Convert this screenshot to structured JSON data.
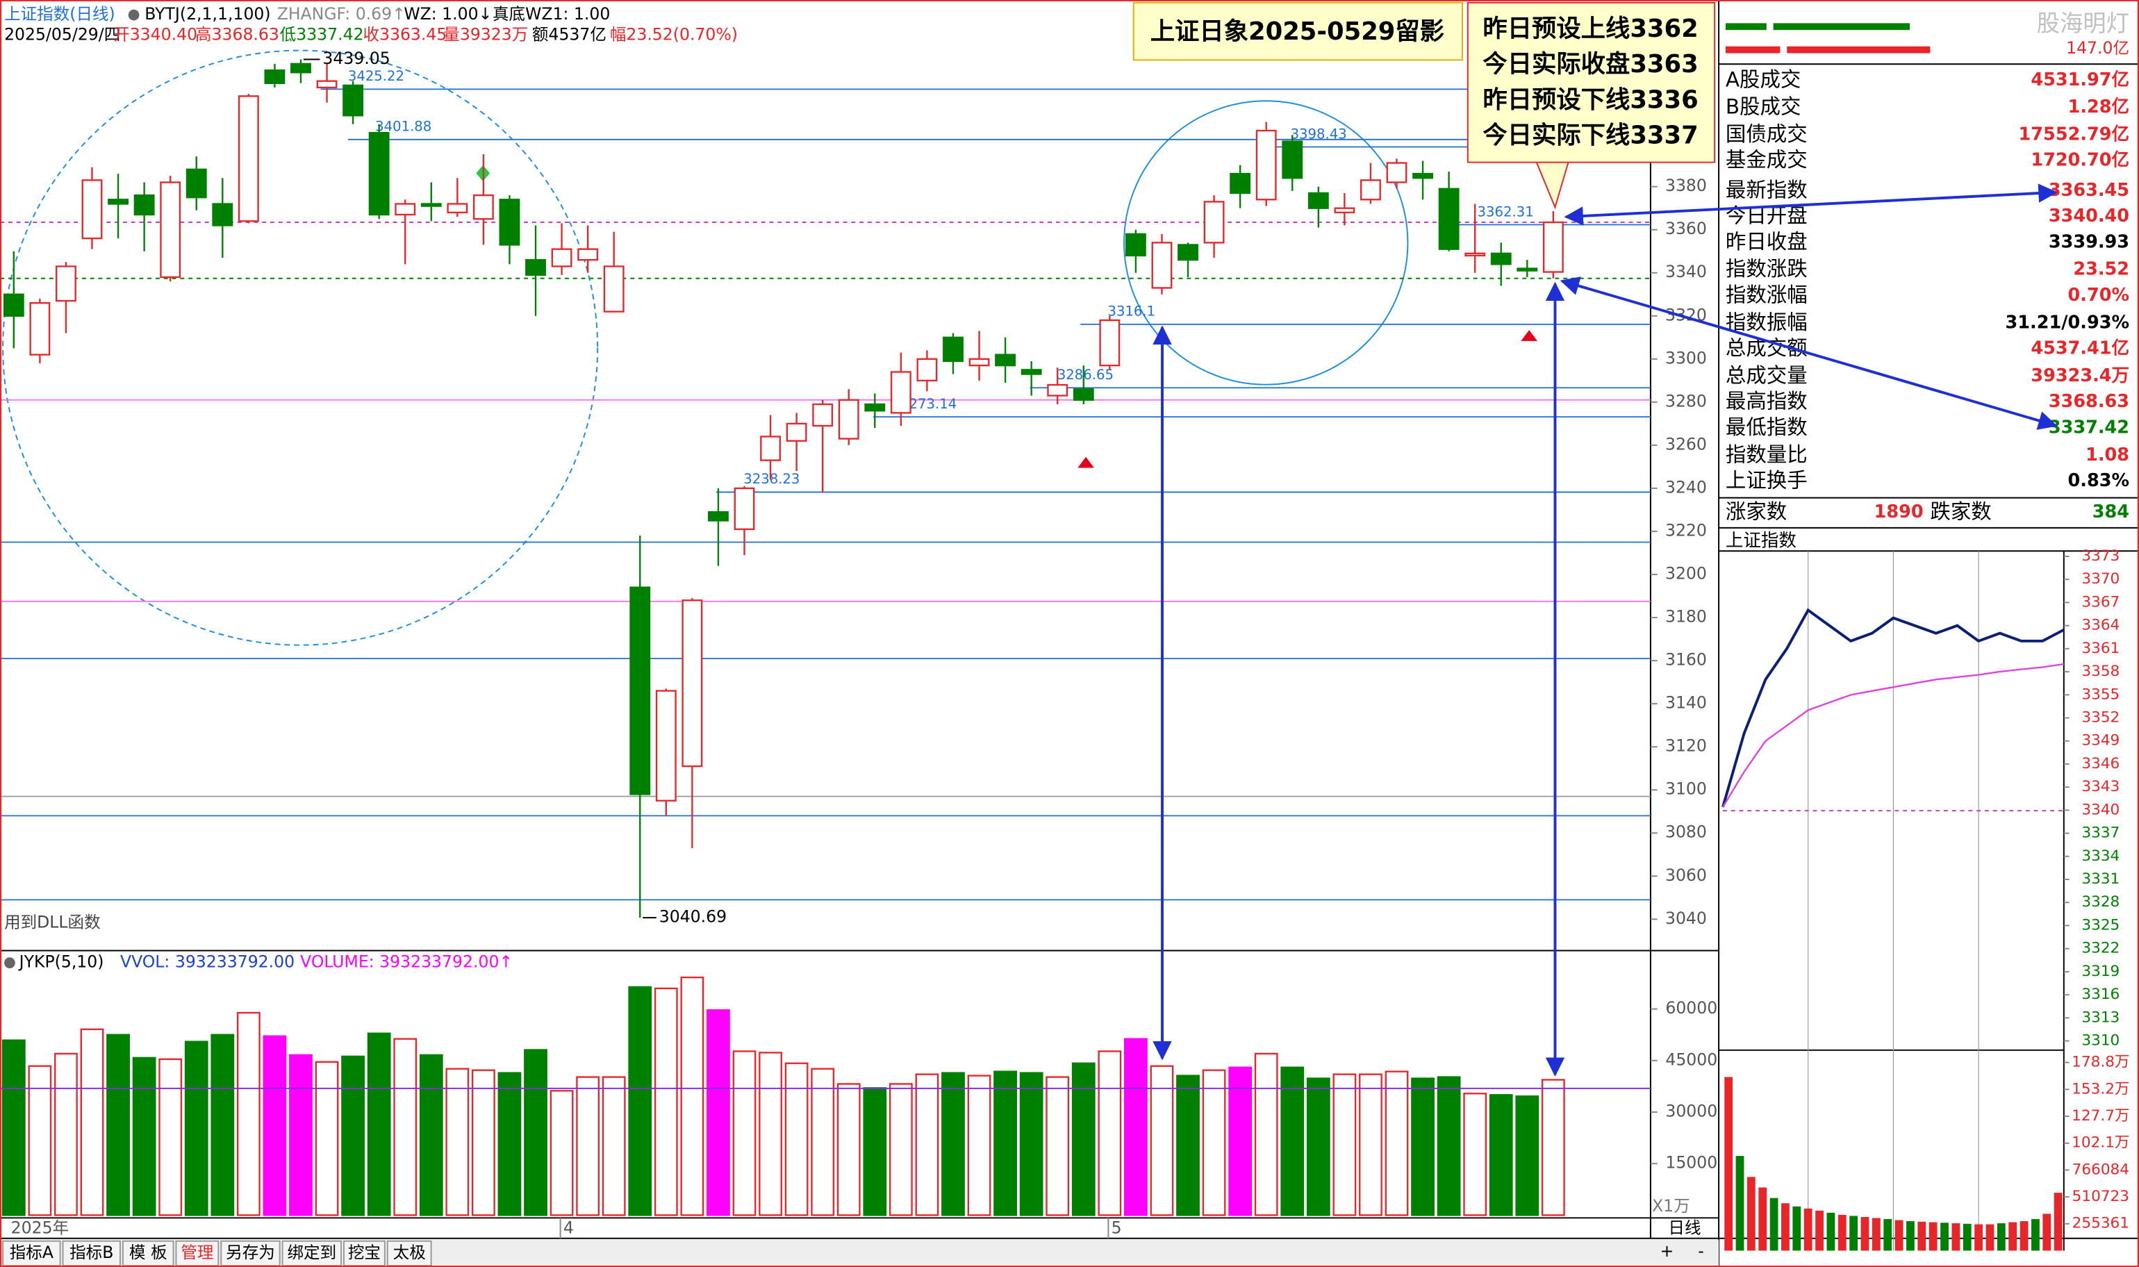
{
  "header": {
    "line1": [
      "上证指数(日线)",
      "BYTJ(2,1,1,100)",
      "ZHANGF: 0.69↑",
      "WZ: 1.00↓",
      "真底WZ1: 1.00"
    ],
    "line2": [
      "2025/05/29/四",
      "开3340.40",
      "高3368.63",
      "低3337.42",
      "收3363.45",
      "量39323万",
      "额4537亿",
      "幅23.52(0.70%)"
    ]
  },
  "note_title": "上证日象2025-0529留影",
  "note_lines": [
    "昨日预设上线3362",
    "今日实际收盘3363",
    "昨日预设下线3336",
    "今日实际下线3337"
  ],
  "watermark": "股海明灯",
  "dll_note": "用到DLL函数",
  "volume_header": [
    "JYKP(5,10)",
    "VVOL: 393233792.00",
    "VOLUME: 393233792.00↑"
  ],
  "volume_unit": "X1万",
  "quote_panel": {
    "top_value": "147.0亿",
    "rows": [
      {
        "label": "A股成交",
        "value": "4531.97亿",
        "color": "#e8262a"
      },
      {
        "label": "B股成交",
        "value": "1.28亿",
        "color": "#e8262a"
      },
      {
        "label": "国债成交",
        "value": "17552.79亿",
        "color": "#e8262a"
      },
      {
        "label": "基金成交",
        "value": "1720.70亿",
        "color": "#e8262a"
      },
      {
        "label": "最新指数",
        "value": "3363.45",
        "color": "#e8262a"
      },
      {
        "label": "今日开盘",
        "value": "3340.40",
        "color": "#e8262a"
      },
      {
        "label": "昨日收盘",
        "value": "3339.93",
        "color": "#000000"
      },
      {
        "label": "指数涨跌",
        "value": "23.52",
        "color": "#e8262a"
      },
      {
        "label": "指数涨幅",
        "value": "0.70%",
        "color": "#e8262a"
      },
      {
        "label": "指数振幅",
        "value": "31.21/0.93%",
        "color": "#000000"
      },
      {
        "label": "总成交额",
        "value": "4537.41亿",
        "color": "#e8262a"
      },
      {
        "label": "总成交量",
        "value": "39323.4万",
        "color": "#e8262a"
      },
      {
        "label": "最高指数",
        "value": "3368.63",
        "color": "#e8262a"
      },
      {
        "label": "最低指数",
        "value": "3337.42",
        "color": "#008000"
      },
      {
        "label": "指数量比",
        "value": "1.08",
        "color": "#e8262a"
      },
      {
        "label": "上证换手",
        "value": "0.83%",
        "color": "#000000"
      }
    ],
    "advance_label": "涨家数",
    "advance": "1890",
    "decline_label": "跌家数",
    "decline": "384"
  },
  "tabs": [
    "指标A",
    "指标B",
    "模 板",
    "管理",
    "另存为",
    "绑定到",
    "挖宝",
    "太极"
  ],
  "period_label": "日线",
  "zoom": [
    "+",
    "-"
  ],
  "chart_data": [
    {
      "type": "candlestick",
      "up_color": "#e8262a",
      "down_color": "#008000",
      "categories": [
        null,
        "2025年",
        null,
        null,
        null,
        null,
        null,
        null,
        null,
        null,
        null,
        null,
        null,
        null,
        null,
        null,
        null,
        null,
        null,
        null,
        null,
        "4",
        null,
        null,
        null,
        null,
        null,
        null,
        null,
        null,
        null,
        null,
        null,
        null,
        null,
        null,
        null,
        null,
        null,
        null,
        null,
        null,
        "5",
        null,
        null,
        null,
        null,
        null,
        null,
        null,
        null,
        null,
        null,
        null,
        null,
        null,
        null,
        null,
        null,
        null
      ],
      "open": [
        3330,
        3302,
        3327,
        3356,
        3374,
        3376,
        3338,
        3388,
        3372,
        3364,
        3434,
        3437,
        3426,
        3427,
        3405,
        3367,
        3372,
        3368,
        3365,
        3374,
        3346,
        3343,
        3346,
        3322,
        3194,
        3095,
        3111,
        3229,
        3221,
        3253,
        3262,
        3269,
        3263,
        3279,
        3275,
        3290,
        3310,
        3297,
        3302,
        3295,
        3283,
        3286,
        3297,
        3358,
        3333,
        3353,
        3354,
        3386,
        3374,
        3401,
        3377,
        3368,
        3374,
        3382,
        3386,
        3379,
        3348,
        3349,
        3342,
        3340.4
      ],
      "high": [
        3350,
        3328,
        3345,
        3389,
        3386,
        3382,
        3385,
        3394,
        3384,
        3423,
        3437,
        3439.05,
        3437,
        3429,
        3409,
        3374,
        3382,
        3384,
        3395,
        3376,
        3362,
        3363,
        3362,
        3359,
        3218,
        3147,
        3189,
        3240,
        3241,
        3274,
        3275,
        3281,
        3286,
        3284,
        3303,
        3304,
        3312,
        3313,
        3310,
        3299,
        3296,
        3297,
        3320,
        3360,
        3358,
        3354,
        3376,
        3390,
        3410,
        3404,
        3380,
        3377,
        3391,
        3393,
        3392,
        3387,
        3372,
        3354,
        3346,
        3368.63
      ],
      "low": [
        3305,
        3298,
        3312,
        3351,
        3356,
        3350,
        3336,
        3369,
        3347,
        3363,
        3426,
        3428,
        3419,
        3409,
        3365,
        3344,
        3364,
        3366,
        3353,
        3344,
        3320,
        3339,
        3340,
        3322,
        3040.69,
        3088,
        3073,
        3204,
        3209,
        3244,
        3248,
        3238,
        3260,
        3268,
        3269,
        3285,
        3293,
        3290,
        3289,
        3283,
        3279,
        3279,
        3295,
        3340,
        3330,
        3338,
        3347,
        3370,
        3371,
        3378,
        3361,
        3362,
        3372,
        3379,
        3374,
        3350,
        3340,
        3334,
        3338,
        3337.42
      ],
      "close": [
        3320,
        3326,
        3343,
        3383,
        3372,
        3367,
        3382,
        3375,
        3362,
        3422,
        3428,
        3433,
        3429,
        3413,
        3367,
        3372,
        3371,
        3372,
        3376,
        3353,
        3339,
        3351,
        3351,
        3343,
        3098,
        3146,
        3188,
        3225,
        3240,
        3264,
        3270,
        3279,
        3281,
        3276,
        3294,
        3300,
        3299,
        3300,
        3297,
        3293,
        3288,
        3281,
        3318,
        3348,
        3354,
        3346,
        3373,
        3377,
        3406,
        3384,
        3370,
        3370,
        3383,
        3391,
        3384,
        3351,
        3349,
        3344,
        3341,
        3363.45
      ],
      "ylim": [
        3026.7,
        3441.3
      ],
      "yticks": [
        3040,
        3060,
        3080,
        3100,
        3120,
        3140,
        3160,
        3180,
        3200,
        3220,
        3240,
        3260,
        3280,
        3300,
        3320,
        3340,
        3360,
        3380
      ],
      "levels": [
        {
          "value": 3425.22,
          "label": "3425.22"
        },
        {
          "value": 3401.88,
          "label": "3401.88"
        },
        {
          "value": 3316.1,
          "label": "3316.1"
        },
        {
          "value": 3286.65,
          "label": "3286.65"
        },
        {
          "value": 3273.14,
          "label": "3273.14"
        },
        {
          "value": 3238.23,
          "label": "3238.23"
        },
        {
          "value": 3362.31,
          "label": "3362.31"
        },
        {
          "value": 3398.43,
          "label": "3398.43"
        }
      ],
      "lines": [
        {
          "value": 3215,
          "color": "#1e6fd9"
        },
        {
          "value": 3161,
          "color": "#1e6fd9"
        },
        {
          "value": 3088,
          "color": "#1e6fd9"
        },
        {
          "value": 3049,
          "color": "#1e6fd9"
        },
        {
          "value": 3187.5,
          "color": "#ff66ff"
        },
        {
          "value": 3281,
          "color": "#ff66ff"
        },
        {
          "value": 3097,
          "color": "#999999"
        }
      ]
    },
    {
      "type": "bar",
      "values": [
        50900,
        43400,
        47000,
        54100,
        52500,
        45800,
        45400,
        50500,
        52500,
        58900,
        52100,
        46600,
        44600,
        46200,
        52900,
        51300,
        46600,
        42600,
        42200,
        41400,
        48100,
        36200,
        40200,
        40200,
        66400,
        66000,
        69200,
        59700,
        47700,
        47300,
        44200,
        42600,
        38200,
        37000,
        38200,
        41000,
        41400,
        40600,
        41800,
        41400,
        40200,
        44200,
        47700,
        51300,
        43400,
        40600,
        42200,
        43000,
        47000,
        43000,
        39800,
        41000,
        41000,
        41800,
        39800,
        40200,
        35400,
        35000,
        34600,
        39400
      ],
      "colors": [
        "#008000",
        "#e8262a",
        "#e8262a",
        "#e8262a",
        "#008000",
        "#008000",
        "#e8262a",
        "#008000",
        "#008000",
        "#e8262a",
        "#ff00ff",
        "#ff00ff",
        "#e8262a",
        "#008000",
        "#008000",
        "#e8262a",
        "#008000",
        "#e8262a",
        "#e8262a",
        "#008000",
        "#008000",
        "#e8262a",
        "#e8262a",
        "#e8262a",
        "#008000",
        "#e8262a",
        "#e8262a",
        "#ff00ff",
        "#e8262a",
        "#e8262a",
        "#e8262a",
        "#e8262a",
        "#e8262a",
        "#008000",
        "#e8262a",
        "#e8262a",
        "#008000",
        "#e8262a",
        "#008000",
        "#008000",
        "#e8262a",
        "#008000",
        "#e8262a",
        "#ff00ff",
        "#e8262a",
        "#008000",
        "#e8262a",
        "#ff00ff",
        "#e8262a",
        "#008000",
        "#008000",
        "#e8262a",
        "#e8262a",
        "#e8262a",
        "#008000",
        "#008000",
        "#e8262a",
        "#008000",
        "#008000",
        "#e8262a"
      ],
      "hollow_color": "#e8262a",
      "reference": 36900,
      "ylim": [
        0,
        77000
      ],
      "yticks": [
        15000,
        30000,
        45000,
        60000
      ]
    },
    {
      "type": "line",
      "title": "上证指数",
      "x": [
        0,
        15,
        30,
        45,
        60,
        75,
        90,
        105,
        120,
        135,
        150,
        165,
        180,
        195,
        210,
        225,
        240
      ],
      "xlim": [
        0,
        240
      ],
      "series": [
        {
          "color": "#0a1f7a",
          "values": [
            3340.4,
            3350,
            3357,
            3361,
            3366,
            3364,
            3362,
            3363,
            3365,
            3364,
            3363,
            3364,
            3362,
            3363,
            3362,
            3362,
            3363.45
          ]
        },
        {
          "color": "#e040e0",
          "values": [
            3340.4,
            3345,
            3349,
            3351,
            3353,
            3354,
            3355,
            3355.5,
            3356,
            3356.5,
            3357,
            3357.3,
            3357.6,
            3358,
            3358.3,
            3358.6,
            3359
          ]
        }
      ],
      "prev_close": 3339.93,
      "ylim": [
        3308.8,
        3373.7
      ],
      "yticks": [
        3373,
        3370,
        3367,
        3364,
        3361,
        3358,
        3355,
        3352,
        3349,
        3346,
        3343,
        3340,
        3337,
        3334,
        3331,
        3328,
        3325,
        3322,
        3319,
        3316,
        3313,
        3310
      ]
    },
    {
      "type": "bar",
      "x": [
        4,
        12,
        20,
        28,
        36,
        44,
        52,
        60,
        68,
        76,
        84,
        92,
        100,
        108,
        116,
        124,
        132,
        140,
        148,
        156,
        164,
        172,
        180,
        188,
        196,
        204,
        212,
        220,
        228,
        236
      ],
      "xlim": [
        0,
        240
      ],
      "values": [
        1650000,
        900000,
        700000,
        600000,
        500000,
        450000,
        420000,
        400000,
        380000,
        360000,
        340000,
        330000,
        320000,
        310000,
        300000,
        290000,
        280000,
        275000,
        270000,
        265000,
        260000,
        255000,
        250000,
        250000,
        260000,
        270000,
        280000,
        300000,
        350000,
        550000
      ],
      "colors": [
        "#e8262a",
        "#008000",
        "#e8262a",
        "#e8262a",
        "#008000",
        "#e8262a",
        "#008000",
        "#e8262a",
        "#e8262a",
        "#008000",
        "#e8262a",
        "#008000",
        "#e8262a",
        "#e8262a",
        "#008000",
        "#e8262a",
        "#008000",
        "#e8262a",
        "#e8262a",
        "#008000",
        "#e8262a",
        "#008000",
        "#e8262a",
        "#e8262a",
        "#008000",
        "#e8262a",
        "#e8262a",
        "#008000",
        "#e8262a",
        "#e8262a"
      ],
      "ylim": [
        0,
        1905000
      ],
      "yticks": [
        {
          "value": 1788000,
          "label": "178.8万"
        },
        {
          "value": 1532000,
          "label": "153.2万"
        },
        {
          "value": 1277000,
          "label": "127.7万"
        },
        {
          "value": 1021000,
          "label": "102.1万"
        },
        766084,
        510723,
        255361
      ]
    }
  ]
}
